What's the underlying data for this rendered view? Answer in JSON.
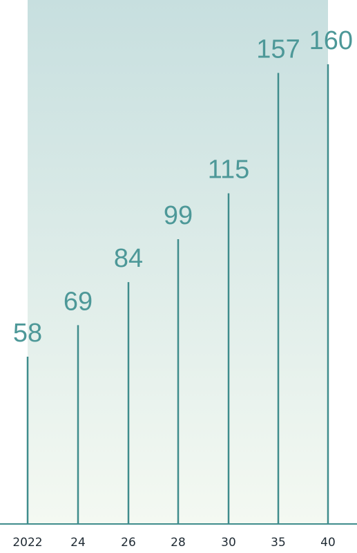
{
  "chart_data": {
    "type": "bar",
    "categories": [
      "2022",
      "24",
      "26",
      "28",
      "30",
      "35",
      "40"
    ],
    "values": [
      58,
      69,
      84,
      99,
      115,
      157,
      160
    ],
    "value_labels": [
      "58",
      "69",
      "84",
      "99",
      "115",
      "157",
      "160"
    ],
    "title": "",
    "xlabel": "",
    "ylabel": "",
    "ylim": [
      0,
      160
    ],
    "grid": false,
    "legend": "none",
    "colors": {
      "stem": "#3f8c8c",
      "value_label": "#4d9898",
      "tick_label": "#1f2a33",
      "axis": "#3f8c8c",
      "band_top": "#c7dfdf",
      "band_bottom": "#f4f9f2"
    }
  }
}
